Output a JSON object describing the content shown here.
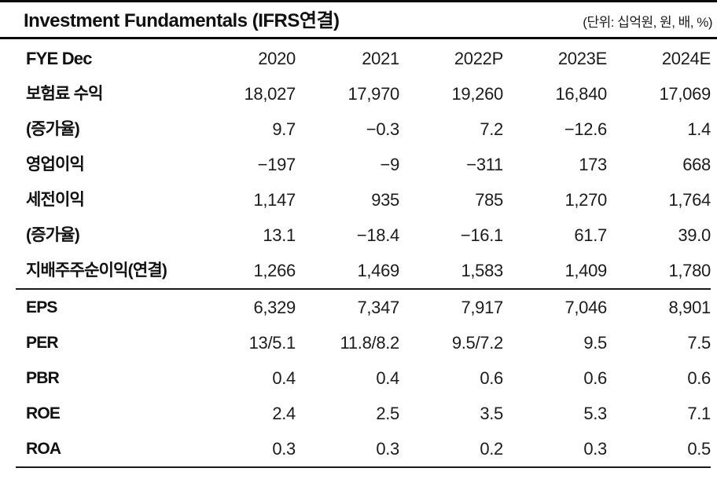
{
  "header": {
    "title": "Investment Fundamentals (IFRS연결)",
    "unit_note": "(단위: 십억원, 원, 배, %)"
  },
  "table": {
    "columns": [
      "FYE Dec",
      "2020",
      "2021",
      "2022P",
      "2023E",
      "2024E"
    ],
    "sections": [
      {
        "rows": [
          {
            "label": "보험료 수익",
            "values": [
              "18,027",
              "17,970",
              "19,260",
              "16,840",
              "17,069"
            ]
          },
          {
            "label": "(증가율)",
            "values": [
              "9.7",
              "−0.3",
              "7.2",
              "−12.6",
              "1.4"
            ]
          },
          {
            "label": "영업이익",
            "values": [
              "−197",
              "−9",
              "−311",
              "173",
              "668"
            ]
          },
          {
            "label": "세전이익",
            "values": [
              "1,147",
              "935",
              "785",
              "1,270",
              "1,764"
            ]
          },
          {
            "label": "(증가율)",
            "values": [
              "13.1",
              "−18.4",
              "−16.1",
              "61.7",
              "39.0"
            ]
          },
          {
            "label": "지배주주순이익(연결)",
            "values": [
              "1,266",
              "1,469",
              "1,583",
              "1,409",
              "1,780"
            ]
          }
        ]
      },
      {
        "rows": [
          {
            "label": "EPS",
            "values": [
              "6,329",
              "7,347",
              "7,917",
              "7,046",
              "8,901"
            ]
          },
          {
            "label": "PER",
            "values": [
              "13/5.1",
              "11.8/8.2",
              "9.5/7.2",
              "9.5",
              "7.5"
            ]
          },
          {
            "label": "PBR",
            "values": [
              "0.4",
              "0.4",
              "0.6",
              "0.6",
              "0.6"
            ]
          },
          {
            "label": "ROE",
            "values": [
              "2.4",
              "2.5",
              "3.5",
              "5.3",
              "7.1"
            ]
          },
          {
            "label": "ROA",
            "values": [
              "0.3",
              "0.3",
              "0.2",
              "0.3",
              "0.5"
            ]
          }
        ]
      }
    ]
  }
}
